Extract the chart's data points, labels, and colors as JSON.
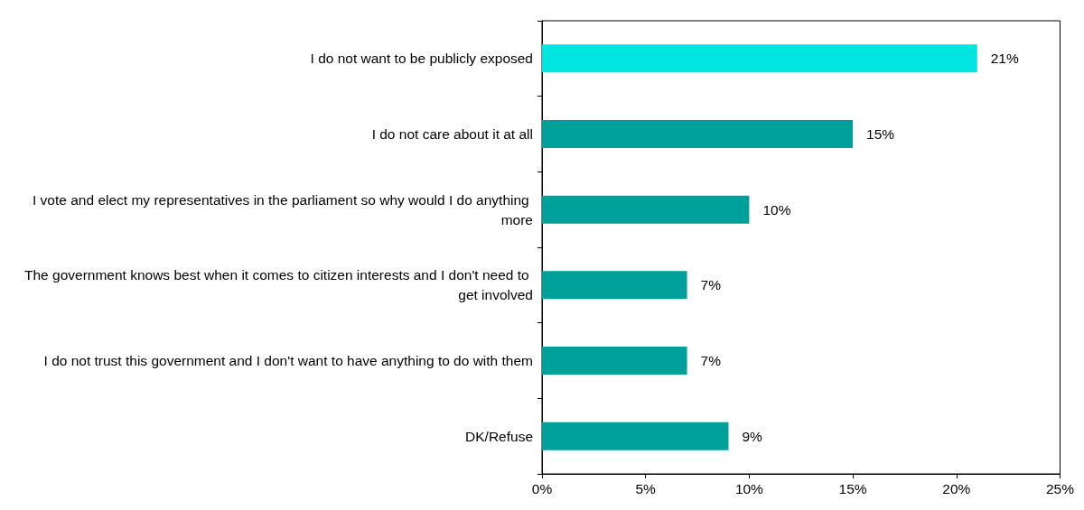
{
  "chart_data": {
    "type": "bar",
    "orientation": "horizontal",
    "categories": [
      "I do not want to be publicly exposed",
      "I do not care about it at all",
      "I vote and elect my representatives in the parliament so why would I do anything more",
      "The government knows best when it comes to citizen interests and I don't need to get involved",
      "I do not trust this government and I don't want to have anything to do with them",
      "DK/Refuse"
    ],
    "values": [
      21,
      15,
      10,
      7,
      7,
      9
    ],
    "colors": [
      "#00e5e0",
      "#00a09a",
      "#00a09a",
      "#00a09a",
      "#00a09a",
      "#00a09a"
    ],
    "value_labels": [
      "21%",
      "15%",
      "10%",
      "7%",
      "7%",
      "9%"
    ],
    "xlim": [
      0,
      25
    ],
    "xticks": [
      {
        "value": 0,
        "label": "0%"
      },
      {
        "value": 5,
        "label": "5%"
      },
      {
        "value": 10,
        "label": "10%"
      },
      {
        "value": 15,
        "label": "15%"
      },
      {
        "value": 20,
        "label": "20%"
      },
      {
        "value": 25,
        "label": "25%"
      }
    ],
    "grid": false
  }
}
